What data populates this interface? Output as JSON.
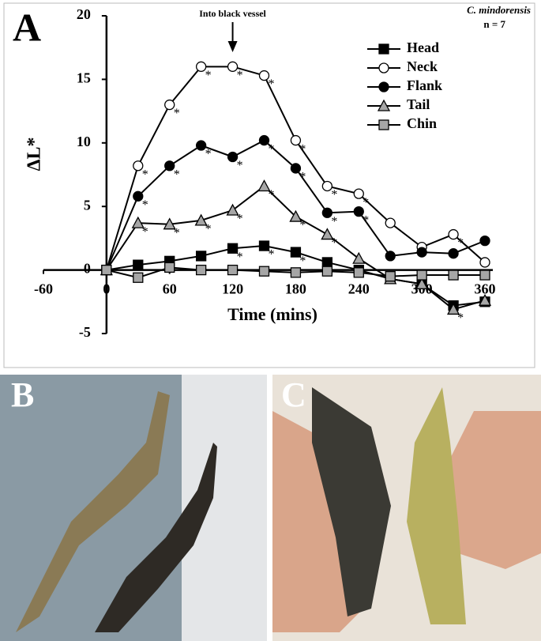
{
  "chart_data": {
    "type": "line",
    "panel_label": "A",
    "species": "C. mindorensis",
    "sample_size": "n = 7",
    "annotation": {
      "text": "Into black vessel",
      "x": 120
    },
    "x_label": "Time (mins)",
    "y_label": "ΔL*",
    "x": [
      0,
      30,
      60,
      90,
      120,
      150,
      180,
      210,
      240,
      270,
      300,
      330,
      360
    ],
    "xlim": [
      -60,
      360
    ],
    "xticks": [
      -60,
      0,
      60,
      120,
      180,
      240,
      300,
      360
    ],
    "ylim": [
      -5,
      20
    ],
    "yticks": [
      -5,
      0,
      5,
      10,
      15,
      20
    ],
    "legend": "upper right",
    "series": [
      {
        "name": "Head",
        "marker": "square",
        "color": "#000000",
        "values": [
          0,
          0.4,
          0.7,
          1.1,
          1.7,
          1.9,
          1.4,
          0.6,
          0,
          -0.7,
          -1.1,
          -2.8,
          -2.5
        ],
        "significance": [
          null,
          null,
          null,
          null,
          "*",
          "*",
          "*",
          null,
          null,
          null,
          null,
          null,
          null
        ]
      },
      {
        "name": "Neck",
        "marker": "circle",
        "color": "#ffffff",
        "values": [
          0,
          8.2,
          13,
          16,
          16,
          15.3,
          10.2,
          6.6,
          6,
          3.7,
          1.8,
          2.8,
          0.6
        ],
        "significance": [
          null,
          "*",
          "*",
          "*",
          "*",
          "*",
          "*",
          "*",
          "*",
          null,
          null,
          "*",
          null
        ]
      },
      {
        "name": "Flank",
        "marker": "circle",
        "color": "#000000",
        "values": [
          0,
          5.8,
          8.2,
          9.8,
          8.9,
          10.2,
          8,
          4.5,
          4.6,
          1.1,
          1.4,
          1.3,
          2.3
        ],
        "significance": [
          null,
          "*",
          "*",
          "*",
          "*",
          "*",
          "*",
          "*",
          "*",
          null,
          null,
          null,
          null
        ]
      },
      {
        "name": "Tail",
        "marker": "triangle",
        "color": "#a6a6a6",
        "values": [
          0,
          3.7,
          3.6,
          3.9,
          4.7,
          6.6,
          4.2,
          2.8,
          0.9,
          -0.7,
          -1.1,
          -3.1,
          -2.4
        ],
        "significance": [
          null,
          "*",
          "*",
          "*",
          "*",
          "*",
          "*",
          "*",
          null,
          null,
          null,
          "*",
          null
        ]
      },
      {
        "name": "Chin",
        "marker": "square",
        "color": "#a6a6a6",
        "values": [
          0,
          -0.6,
          0.2,
          0,
          0,
          -0.1,
          -0.2,
          -0.1,
          -0.2,
          -0.5,
          -0.4,
          -0.4,
          -0.4
        ],
        "significance": [
          null,
          null,
          null,
          null,
          null,
          null,
          null,
          null,
          null,
          null,
          null,
          null,
          null
        ]
      }
    ]
  },
  "photos": [
    {
      "label": "B"
    },
    {
      "label": "C"
    }
  ]
}
